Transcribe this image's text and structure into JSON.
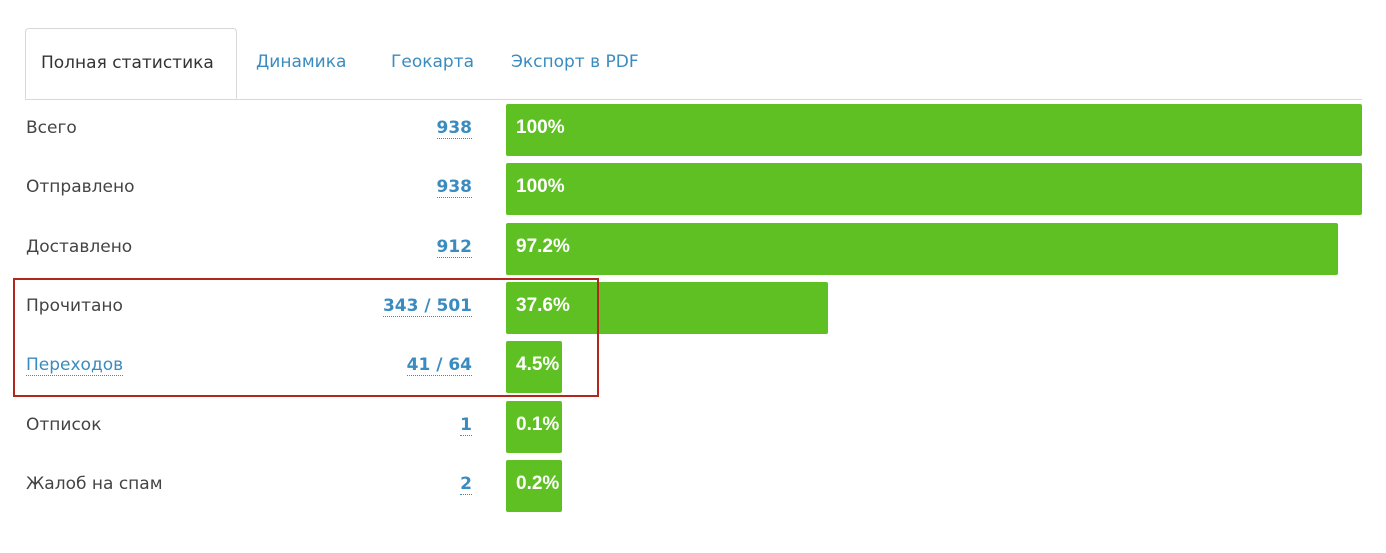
{
  "tabs": {
    "items": [
      "Полная статистика",
      "Динамика",
      "Геокарта",
      "Экспорт в PDF"
    ],
    "active": 0
  },
  "rows": [
    {
      "label": "Всего",
      "count": "938",
      "percent": 100,
      "percent_label": "100%"
    },
    {
      "label": "Отправлено",
      "count": "938",
      "percent": 100,
      "percent_label": "100%"
    },
    {
      "label": "Доставлено",
      "count": "912",
      "percent": 97.2,
      "percent_label": "97.2%"
    },
    {
      "label": "Прочитано",
      "count": "343 / 501",
      "percent": 37.6,
      "percent_label": "37.6%"
    },
    {
      "label": "Переходов",
      "count": "41 / 64",
      "percent": 4.5,
      "percent_label": "4.5%",
      "linked": true
    },
    {
      "label": "Отписок",
      "count": "1",
      "percent": 0.1,
      "percent_label": "0.1%"
    },
    {
      "label": "Жалоб на спам",
      "count": "2",
      "percent": 0.2,
      "percent_label": "0.2%"
    }
  ],
  "bar_color": "#5ec022",
  "highlight_rows": [
    3,
    4
  ]
}
